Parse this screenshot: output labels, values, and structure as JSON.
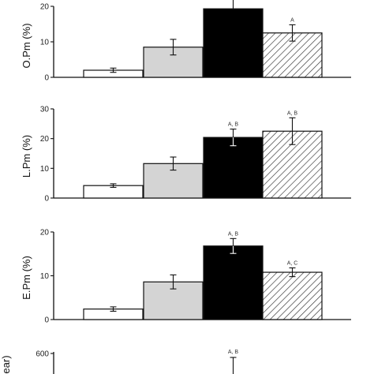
{
  "chart_data": [
    {
      "type": "bar",
      "ylabel": "O.Pm (%)",
      "ylim": [
        0,
        20
      ],
      "yticks": [
        0,
        10,
        20
      ],
      "values": [
        2,
        8.5,
        19.3,
        12.5
      ],
      "errors": [
        0.6,
        2.2,
        0,
        2.3
      ],
      "annotations": [
        "",
        "",
        "",
        "A"
      ],
      "styles": [
        "white",
        "lightgray",
        "black",
        "hatched"
      ]
    },
    {
      "type": "bar",
      "ylabel": "L.Pm (%)",
      "ylim": [
        0,
        30
      ],
      "yticks": [
        0,
        10,
        20,
        30
      ],
      "values": [
        4.2,
        11.6,
        20.4,
        22.5
      ],
      "errors": [
        0.6,
        2.2,
        2.8,
        4.5
      ],
      "annotations": [
        "",
        "",
        "A, B",
        "A, B"
      ],
      "styles": [
        "white",
        "lightgray",
        "black",
        "hatched"
      ]
    },
    {
      "type": "bar",
      "ylabel": "E.Pm (%)",
      "ylim": [
        0,
        20
      ],
      "yticks": [
        0,
        10,
        20
      ],
      "values": [
        2.4,
        8.6,
        16.8,
        10.8
      ],
      "errors": [
        0.5,
        1.6,
        1.7,
        1
      ],
      "annotations": [
        "",
        "",
        "A, B",
        "A, C"
      ],
      "styles": [
        "white",
        "lightgray",
        "black",
        "hatched"
      ]
    },
    {
      "type": "bar",
      "ylabel": "ear)",
      "ylim": [
        0,
        600
      ],
      "yticks": [
        600
      ],
      "values": [],
      "errors": [],
      "annotations": [
        "",
        "",
        "A, B",
        ""
      ],
      "styles": [
        "white",
        "lightgray",
        "black",
        "hatched"
      ]
    }
  ],
  "colors": {
    "white": "#ffffff",
    "lightgray": "#d4d4d4",
    "black": "#000000",
    "hatched": "#ffffff",
    "hatch_line": "#333333",
    "axis": "#111111"
  }
}
